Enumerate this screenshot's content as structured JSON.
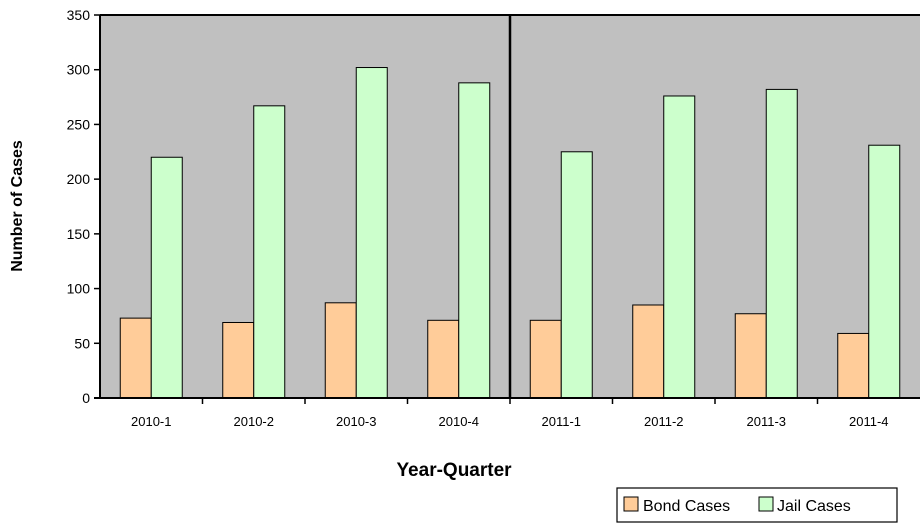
{
  "chart_data": {
    "type": "bar",
    "title": "",
    "xlabel": "Year-Quarter",
    "ylabel": "Number of Cases",
    "ylim": [
      0,
      350
    ],
    "yticks": [
      0,
      50,
      100,
      150,
      200,
      250,
      300,
      350
    ],
    "grid": false,
    "legend_position": "bottom-right",
    "categories": [
      "2010-1",
      "2010-2",
      "2010-3",
      "2010-4",
      "2011-1",
      "2011-2",
      "2011-3",
      "2011-4"
    ],
    "series": [
      {
        "name": "Bond Cases",
        "values": [
          73,
          69,
          87,
          71,
          71,
          85,
          77,
          59
        ],
        "color": "#FFCC99"
      },
      {
        "name": "Jail Cases",
        "values": [
          220,
          267,
          302,
          288,
          225,
          276,
          282,
          231
        ],
        "color": "#CCFFCC"
      }
    ],
    "plot_background": "#C0C0C0",
    "separator_after_category_index": 3
  }
}
